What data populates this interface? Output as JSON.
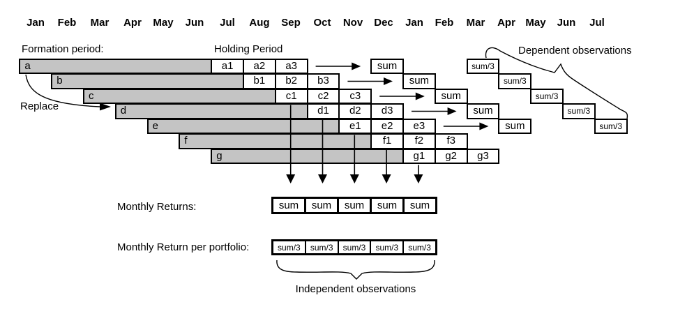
{
  "months": [
    "Jan",
    "Feb",
    "Mar",
    "Apr",
    "May",
    "Jun",
    "Jul",
    "Aug",
    "Sep",
    "Oct",
    "Nov",
    "Dec",
    "Jan",
    "Feb",
    "Mar",
    "Apr",
    "May",
    "Jun",
    "Jul"
  ],
  "labels": {
    "formation_period": "Formation period:",
    "holding_period": "Holding Period",
    "dependent_observations": "Dependent observations",
    "replace": "Replace",
    "monthly_returns": "Monthly Returns:",
    "monthly_return_per_portfolio": "Monthly Return per portfolio:",
    "independent_observations": "Independent observations"
  },
  "portfolios": [
    {
      "label": "a",
      "cells": [
        "a1",
        "a2",
        "a3"
      ],
      "sum": "sum",
      "dep": "sum/3"
    },
    {
      "label": "b",
      "cells": [
        "b1",
        "b2",
        "b3"
      ],
      "sum": "sum",
      "dep": "sum/3"
    },
    {
      "label": "c",
      "cells": [
        "c1",
        "c2",
        "c3"
      ],
      "sum": "sum",
      "dep": "sum/3"
    },
    {
      "label": "d",
      "cells": [
        "d1",
        "d2",
        "d3"
      ],
      "sum": "sum",
      "dep": "sum/3"
    },
    {
      "label": "e",
      "cells": [
        "e1",
        "e2",
        "e3"
      ],
      "sum": "sum",
      "dep": "sum/3"
    },
    {
      "label": "f",
      "cells": [
        "f1",
        "f2",
        "f3"
      ]
    },
    {
      "label": "g",
      "cells": [
        "g1",
        "g2",
        "g3"
      ]
    }
  ],
  "monthly_returns_cells": [
    "sum",
    "sum",
    "sum",
    "sum",
    "sum"
  ],
  "portfolio_return_cells": [
    "sum/3",
    "sum/3",
    "sum/3",
    "sum/3",
    "sum/3"
  ],
  "colors": {
    "bar_fill": "#c4c4c4",
    "line": "#000000",
    "background": "#ffffff",
    "text": "#000000"
  }
}
